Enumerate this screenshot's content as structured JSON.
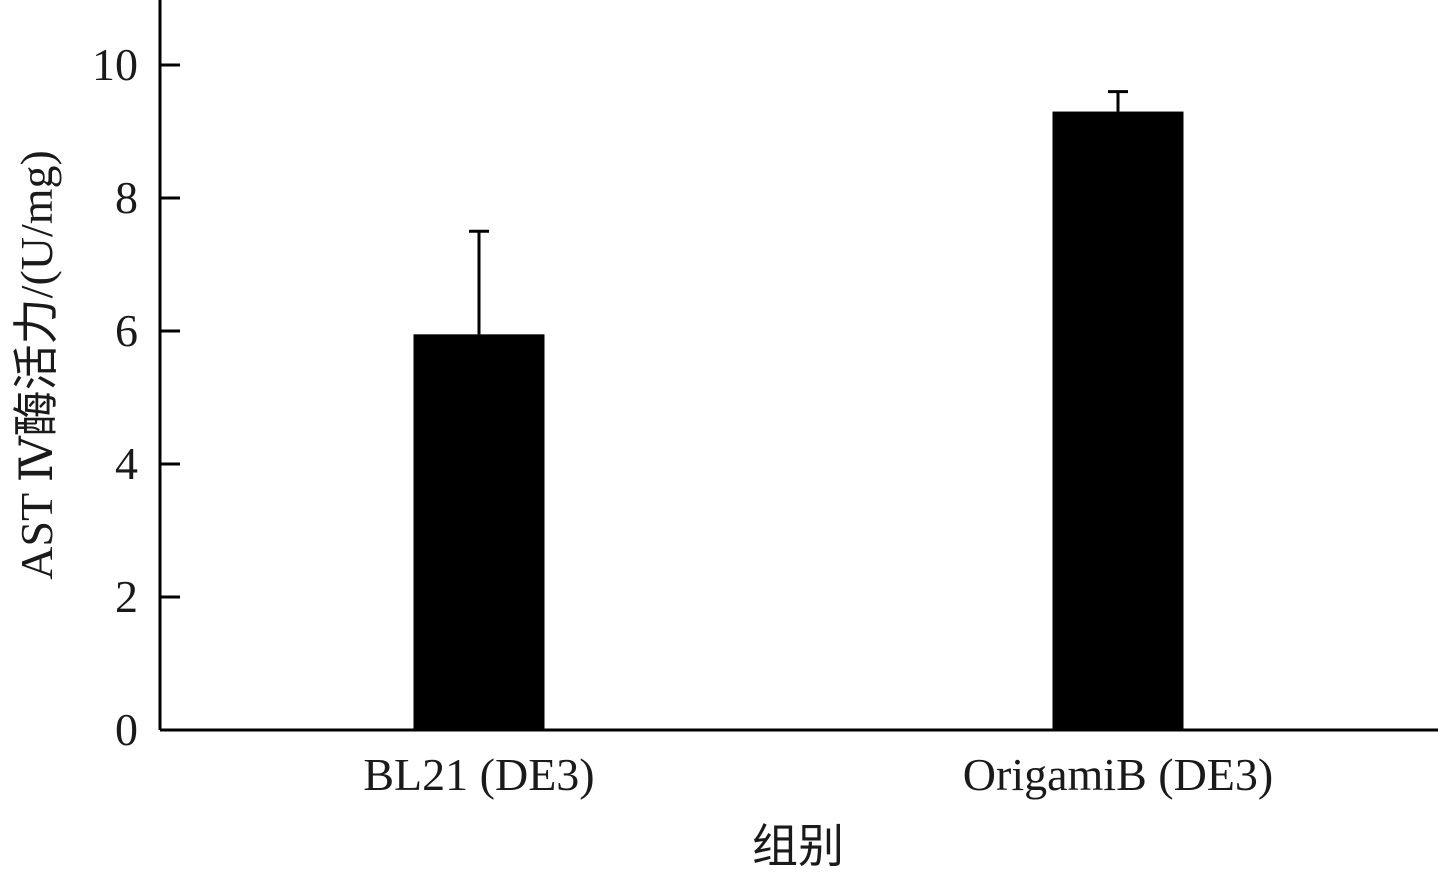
{
  "chart_data": {
    "type": "bar",
    "categories": [
      "BL21 (DE3)",
      "OrigamiB (DE3)"
    ],
    "values": [
      5.95,
      9.3
    ],
    "errors": [
      1.55,
      0.3
    ],
    "xlabel": "组别",
    "ylabel": "AST Ⅳ酶活力/(U/mg)",
    "ylim": [
      0,
      10
    ],
    "yticks": [
      0,
      2,
      4,
      6,
      8,
      10
    ],
    "ytick_labels": [
      "0",
      "2",
      "4",
      "6",
      "8",
      "10"
    ],
    "grid": false,
    "legend": "none",
    "bar_color": "#000000"
  }
}
